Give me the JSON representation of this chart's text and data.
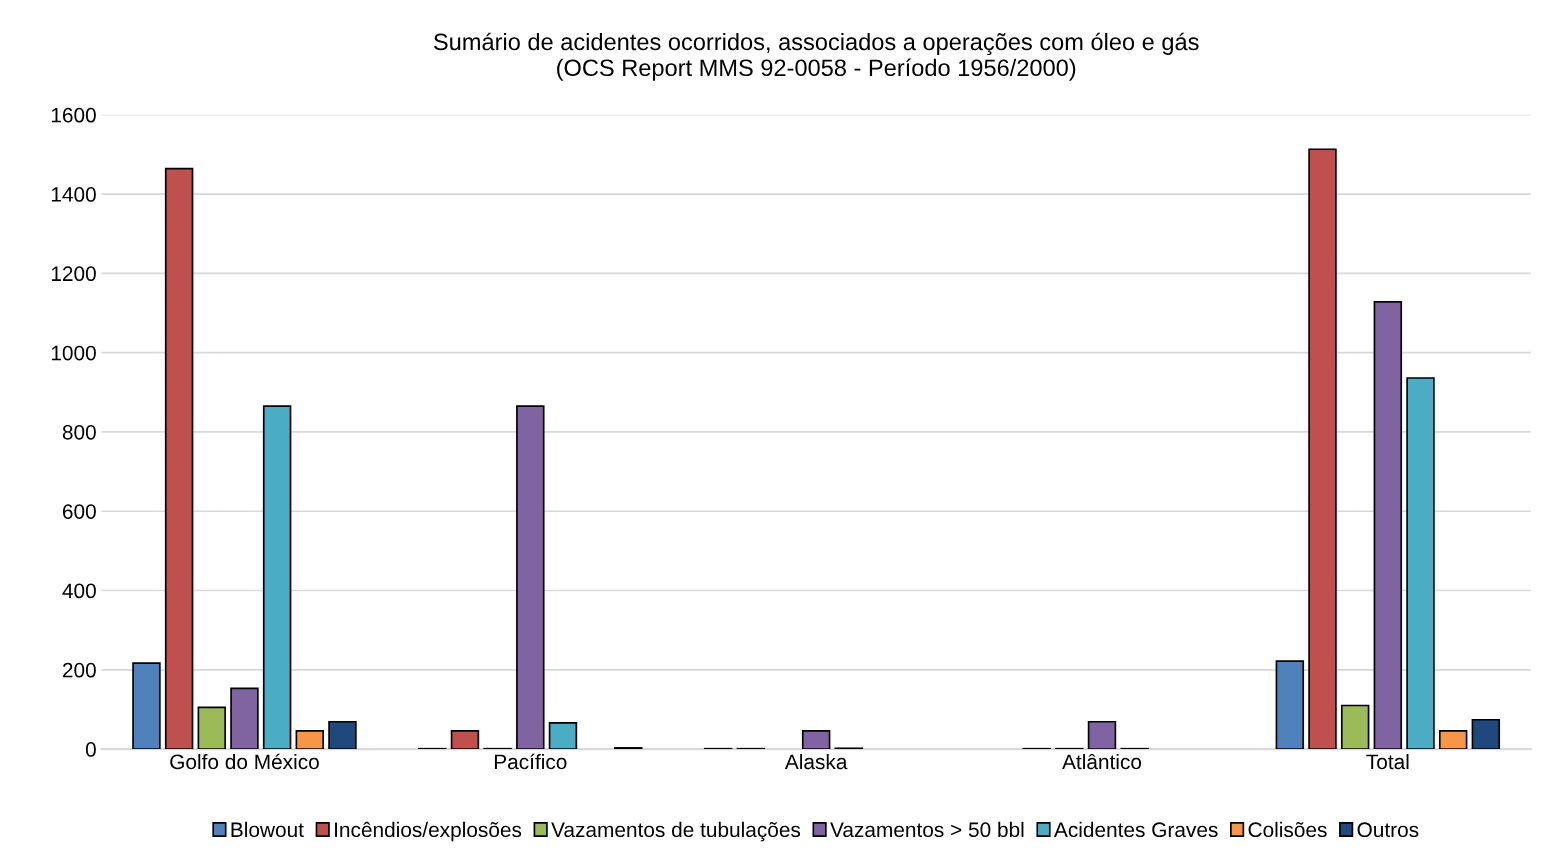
{
  "chart_data": {
    "type": "bar",
    "title": "Sumário de acidentes ocorridos, associados a operações com óleo e gás\n(OCS Report MMS 92-0058 - Período 1956/2000)",
    "categories": [
      "Golfo do México",
      "Pacífico",
      "Alaska",
      "Atlântico",
      "Total"
    ],
    "series": [
      {
        "name": "Blowout",
        "color": "#4f81bd",
        "values": [
          217,
          1,
          1,
          null,
          222
        ]
      },
      {
        "name": "Incêndios/explosões",
        "color": "#c0504d",
        "values": [
          1464,
          46,
          1,
          1,
          1513
        ]
      },
      {
        "name": "Vazamentos de tubulações",
        "color": "#9bbb59",
        "values": [
          105,
          1,
          null,
          1,
          110
        ]
      },
      {
        "name": "Vazamentos > 50 bbl",
        "color": "#8064a2",
        "values": [
          153,
          865,
          46,
          69,
          1128
        ]
      },
      {
        "name": "Acidentes Graves",
        "color": "#4bacc6",
        "values": [
          865,
          66,
          2,
          1,
          936
        ]
      },
      {
        "name": "Colisões",
        "color": "#f79646",
        "values": [
          46,
          null,
          null,
          null,
          46
        ]
      },
      {
        "name": "Outros",
        "color": "#1f497d",
        "values": [
          69,
          3,
          null,
          null,
          74
        ]
      }
    ],
    "ylim": [
      0,
      1600
    ],
    "yticks": [
      0,
      200,
      400,
      600,
      800,
      1000,
      1200,
      1400,
      1600
    ],
    "grid": "y",
    "legend": "bottom"
  }
}
